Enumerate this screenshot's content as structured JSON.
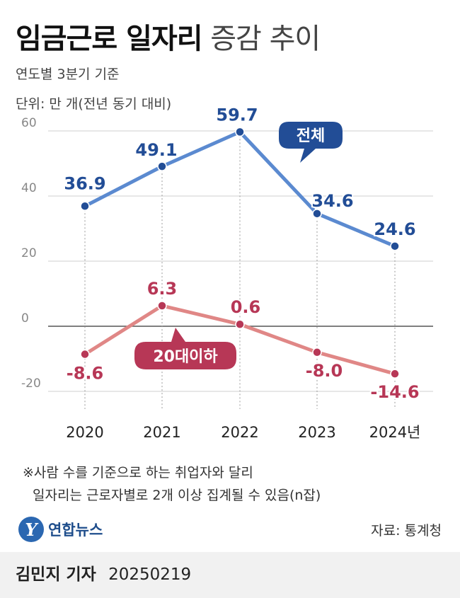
{
  "title_bold": "임금근로 일자리",
  "title_light": "증감 추이",
  "subtitle": "연도별 3분기 기준",
  "unit": "단위: 만 개(전년 동기 대비)",
  "footnote_line1": "※사람 수를 기준으로 하는 취업자와 달리",
  "footnote_line2": "일자리는 근로자별로 2개 이상 집계될 수 있음(n잡)",
  "logo_text": "연합뉴스",
  "logo_mark": "Y",
  "source": "자료: 통계청",
  "byline_name": "김민지 기자",
  "byline_date": "20250219",
  "chart_data": {
    "type": "line",
    "categories": [
      "2020",
      "2021",
      "2022",
      "2023",
      "2024년"
    ],
    "series": [
      {
        "name": "전체",
        "values": [
          36.9,
          49.1,
          59.7,
          34.6,
          24.6
        ],
        "labels": [
          "36.9",
          "49.1",
          "59.7",
          "34.6",
          "24.6"
        ],
        "color": "#5b8ad0",
        "point_color": "#224d96",
        "label_color": "#224d96"
      },
      {
        "name": "20대이하",
        "values": [
          -8.6,
          6.3,
          0.6,
          -8.0,
          -14.6
        ],
        "labels": [
          "-8.6",
          "6.3",
          "0.6",
          "-8.0",
          "-14.6"
        ],
        "color": "#e08786",
        "point_color": "#b73756",
        "label_color": "#b73756"
      }
    ],
    "yticks": [
      "60",
      "40",
      "20",
      "0",
      "-20"
    ],
    "ylim": [
      -20,
      60
    ],
    "grid": true,
    "colors": {
      "grid": "#cfcfcf",
      "zero_line": "#555555",
      "tick": "#888888",
      "bubble_total": "#224d96",
      "bubble_20s": "#b73756"
    }
  }
}
